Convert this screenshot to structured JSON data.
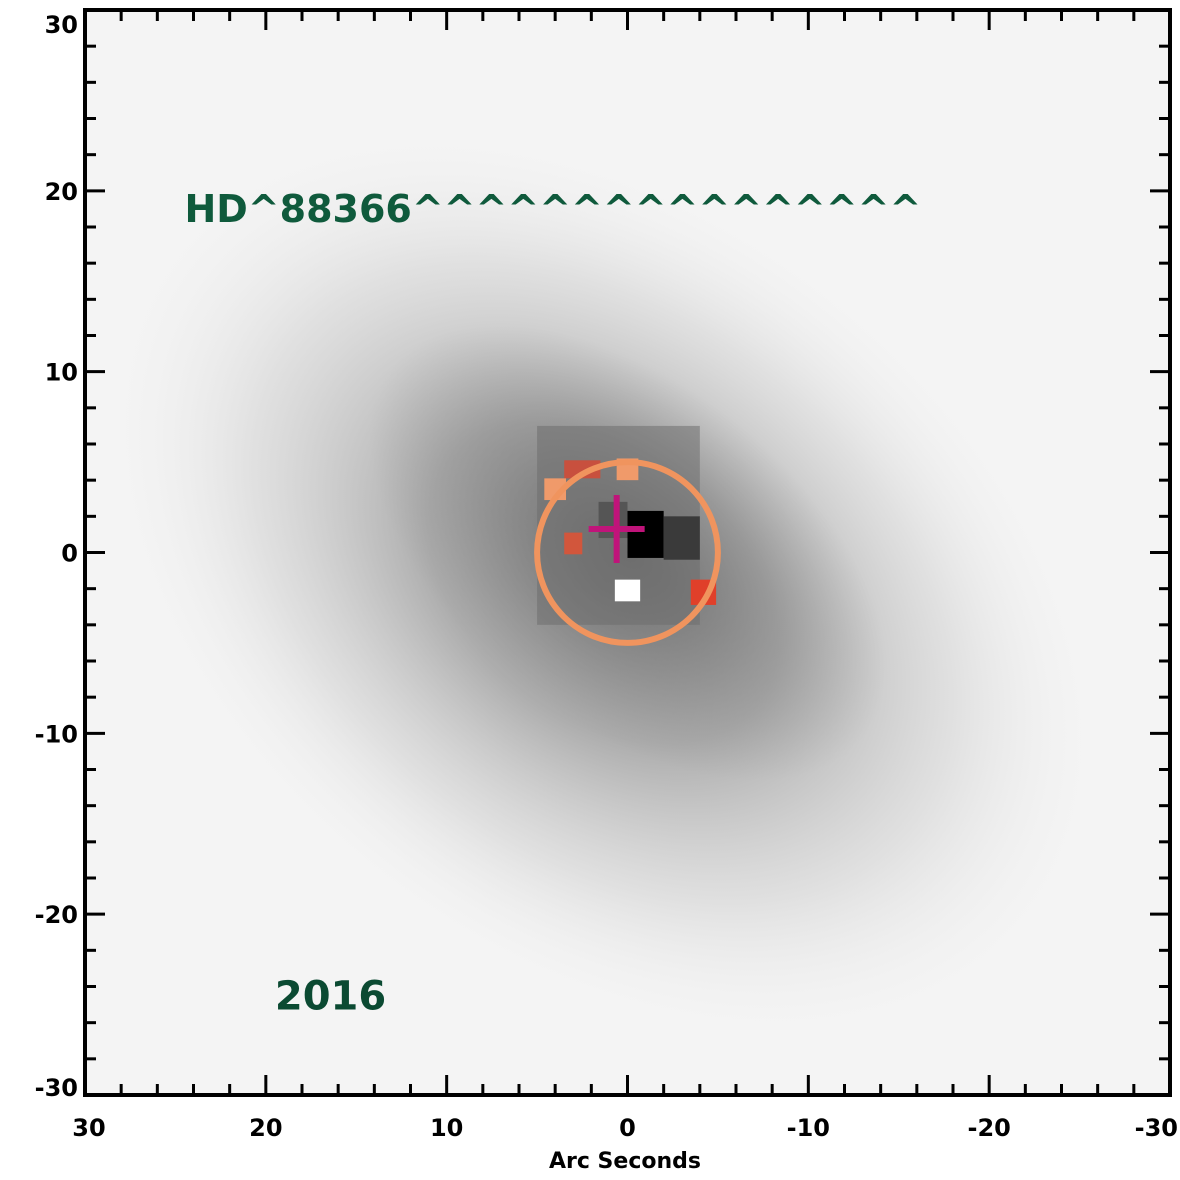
{
  "chart_data": {
    "type": "heatmap",
    "xlabel": "Arc Seconds",
    "ylabel": "",
    "xlim": [
      30,
      -30
    ],
    "ylim": [
      -30,
      30
    ],
    "x_ticks": [
      {
        "value": 30,
        "label": "30"
      },
      {
        "value": 20,
        "label": "20"
      },
      {
        "value": 10,
        "label": "10"
      },
      {
        "value": 0,
        "label": "0"
      },
      {
        "value": -10,
        "label": "-10"
      },
      {
        "value": -20,
        "label": "-20"
      },
      {
        "value": -30,
        "label": "-30"
      }
    ],
    "y_ticks": [
      {
        "value": 30,
        "label": "30"
      },
      {
        "value": 20,
        "label": "20"
      },
      {
        "value": 10,
        "label": "10"
      },
      {
        "value": 0,
        "label": "0"
      },
      {
        "value": -10,
        "label": "-10"
      },
      {
        "value": -20,
        "label": "-20"
      },
      {
        "value": -30,
        "label": "-30"
      }
    ],
    "annotations": [
      {
        "text": "HD^88366^^^^^^^^^^^^^^^^",
        "x": 24.5,
        "y": 19,
        "color": "#0f5a3c",
        "size": 38
      },
      {
        "text": "2016",
        "x": 19.5,
        "y": -24.5,
        "color": "#0b4a32",
        "size": 40
      }
    ],
    "cross_marker": {
      "x": 0.6,
      "y": 1.3,
      "color": "#c0147a"
    },
    "circle_marker": {
      "x": 0,
      "y": 0,
      "radius": 5,
      "color": "#f0945e"
    },
    "diffuse_emission": {
      "x": 0,
      "y": 0,
      "orientation": "northwest-southeast",
      "color": "#808080"
    },
    "pixels": [
      {
        "x": 2.5,
        "y": 4.6,
        "w": 2.0,
        "h": 1.0,
        "color": "#c8503e"
      },
      {
        "x": 0,
        "y": 4.6,
        "w": 1.2,
        "h": 1.2,
        "color": "#f09a6a"
      },
      {
        "x": 4.0,
        "y": 3.5,
        "w": 1.2,
        "h": 1.2,
        "color": "#f09a6a"
      },
      {
        "x": 3.0,
        "y": 0.5,
        "w": 1.0,
        "h": 1.2,
        "color": "#d2563c"
      },
      {
        "x": -1.0,
        "y": 1.0,
        "w": 2.0,
        "h": 2.6,
        "color": "#000000"
      },
      {
        "x": -3.0,
        "y": 0.8,
        "w": 2.0,
        "h": 2.4,
        "color": "#3a3a3a"
      },
      {
        "x": 0.8,
        "y": 1.8,
        "w": 1.6,
        "h": 2.0,
        "color": "#555555"
      },
      {
        "x": 0,
        "y": -2.1,
        "w": 1.4,
        "h": 1.2,
        "color": "#ffffff"
      },
      {
        "x": -4.2,
        "y": -2.2,
        "w": 1.4,
        "h": 1.4,
        "color": "#e0402a"
      }
    ]
  }
}
